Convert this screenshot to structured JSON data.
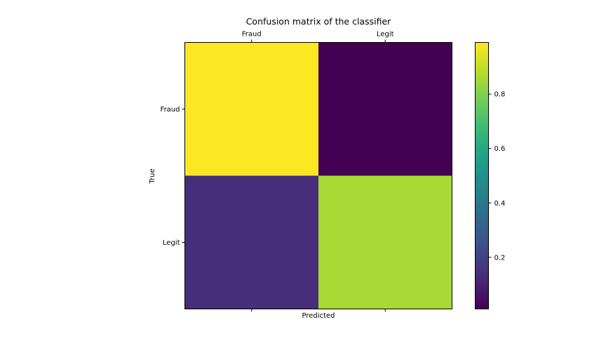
{
  "chart_data": {
    "type": "heatmap",
    "title": "Confusion matrix of the classifier",
    "xlabel": "Predicted",
    "ylabel": "True",
    "x_categories": [
      "Fraud",
      "Legit"
    ],
    "y_categories": [
      "Fraud",
      "Legit"
    ],
    "values": [
      [
        0.99,
        0.01
      ],
      [
        0.14,
        0.86
      ]
    ],
    "colormap": "viridis",
    "colorbar": {
      "range": [
        0.01,
        0.99
      ],
      "ticks": [
        0.2,
        0.4,
        0.6,
        0.8
      ],
      "tick_labels": [
        "0.2",
        "0.4",
        "0.6",
        "0.8"
      ]
    },
    "x_tick_position": "top",
    "grid": false
  }
}
